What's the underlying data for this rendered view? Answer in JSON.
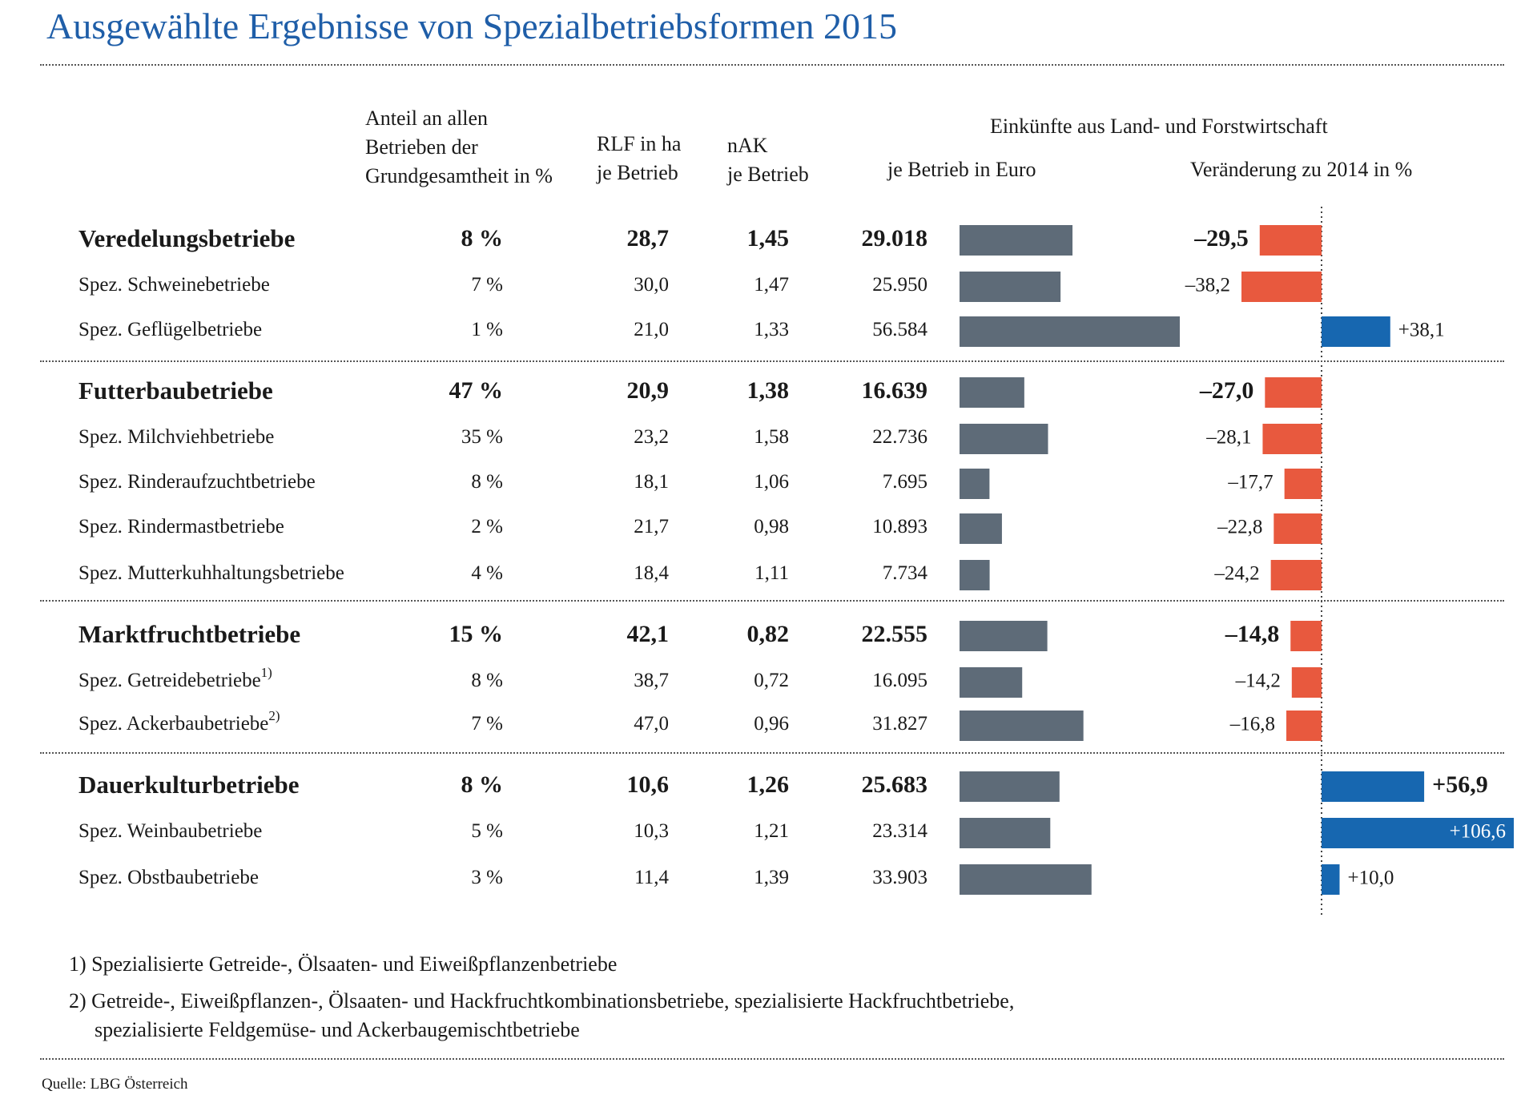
{
  "title": "Ausgewählte Ergebnisse von Spezialbetriebsformen 2015",
  "headers": {
    "anteil": [
      "Anteil an allen",
      "Betrieben der",
      "Grundgesamtheit in %"
    ],
    "rlf": [
      "RLF in ha",
      "je Betrieb"
    ],
    "nak": [
      "nAK",
      "je Betrieb"
    ],
    "einkuenfte": "Einkünfte aus Land- und Forstwirtschaft",
    "je_betrieb": "je Betrieb in Euro",
    "veraenderung": "Veränderung zu 2014 in %"
  },
  "colors": {
    "title": "#1f5ea8",
    "bar_income": "#5e6b78",
    "negative": "#e8593e",
    "positive": "#1767b0"
  },
  "rows": [
    {
      "name": "Veredelungsbetriebe",
      "sup": "",
      "bold": true,
      "anteil": "8 %",
      "rlf": "28,7",
      "nak": "1,45",
      "euro_label": "29.018",
      "change_label": "–29,5"
    },
    {
      "name": "Spez. Schweinebetriebe",
      "sup": "",
      "bold": false,
      "anteil": "7 %",
      "rlf": "30,0",
      "nak": "1,47",
      "euro_label": "25.950",
      "change_label": "–38,2"
    },
    {
      "name": "Spez. Geflügelbetriebe",
      "sup": "",
      "bold": false,
      "anteil": "1 %",
      "rlf": "21,0",
      "nak": "1,33",
      "euro_label": "56.584",
      "change_label": "+38,1"
    },
    {
      "name": "Futterbaubetriebe",
      "sup": "",
      "bold": true,
      "anteil": "47 %",
      "rlf": "20,9",
      "nak": "1,38",
      "euro_label": "16.639",
      "change_label": "–27,0"
    },
    {
      "name": "Spez. Milchviehbetriebe",
      "sup": "",
      "bold": false,
      "anteil": "35 %",
      "rlf": "23,2",
      "nak": "1,58",
      "euro_label": "22.736",
      "change_label": "–28,1"
    },
    {
      "name": "Spez. Rinderaufzuchtbetriebe",
      "sup": "",
      "bold": false,
      "anteil": "8 %",
      "rlf": "18,1",
      "nak": "1,06",
      "euro_label": "7.695",
      "change_label": "–17,7"
    },
    {
      "name": "Spez. Rindermastbetriebe",
      "sup": "",
      "bold": false,
      "anteil": "2 %",
      "rlf": "21,7",
      "nak": "0,98",
      "euro_label": "10.893",
      "change_label": "–22,8"
    },
    {
      "name": "Spez. Mutterkuhhaltungsbetriebe",
      "sup": "",
      "bold": false,
      "anteil": "4 %",
      "rlf": "18,4",
      "nak": "1,11",
      "euro_label": "7.734",
      "change_label": "–24,2"
    },
    {
      "name": "Marktfruchtbetriebe",
      "sup": "",
      "bold": true,
      "anteil": "15 %",
      "rlf": "42,1",
      "nak": "0,82",
      "euro_label": "22.555",
      "change_label": "–14,8"
    },
    {
      "name": "Spez. Getreidebetriebe",
      "sup": "1)",
      "bold": false,
      "anteil": "8 %",
      "rlf": "38,7",
      "nak": "0,72",
      "euro_label": "16.095",
      "change_label": "–14,2"
    },
    {
      "name": "Spez. Ackerbaubetriebe",
      "sup": "2)",
      "bold": false,
      "anteil": "7 %",
      "rlf": "47,0",
      "nak": "0,96",
      "euro_label": "31.827",
      "change_label": "–16,8"
    },
    {
      "name": "Dauerkulturbetriebe",
      "sup": "",
      "bold": true,
      "anteil": "8 %",
      "rlf": "10,6",
      "nak": "1,26",
      "euro_label": "25.683",
      "change_label": "+56,9"
    },
    {
      "name": "Spez. Weinbaubetriebe",
      "sup": "",
      "bold": false,
      "anteil": "5 %",
      "rlf": "10,3",
      "nak": "1,21",
      "euro_label": "23.314",
      "change_label": "+106,6"
    },
    {
      "name": "Spez. Obstbaubetriebe",
      "sup": "",
      "bold": false,
      "anteil": "3 %",
      "rlf": "11,4",
      "nak": "1,39",
      "euro_label": "33.903",
      "change_label": "+10,0"
    }
  ],
  "chart_data": [
    {
      "type": "bar",
      "title": "je Betrieb in Euro",
      "categories": [
        "Veredelungsbetriebe",
        "Spez. Schweinebetriebe",
        "Spez. Geflügelbetriebe",
        "Futterbaubetriebe",
        "Spez. Milchviehbetriebe",
        "Spez. Rinderaufzuchtbetriebe",
        "Spez. Rindermastbetriebe",
        "Spez. Mutterkuhhaltungsbetriebe",
        "Marktfruchtbetriebe",
        "Spez. Getreidebetriebe",
        "Spez. Ackerbaubetriebe",
        "Dauerkulturbetriebe",
        "Spez. Weinbaubetriebe",
        "Spez. Obstbaubetriebe"
      ],
      "values": [
        29018,
        25950,
        56584,
        16639,
        22736,
        7695,
        10893,
        7734,
        22555,
        16095,
        31827,
        25683,
        23314,
        33903
      ],
      "orientation": "horizontal",
      "grid": false
    },
    {
      "type": "bar",
      "title": "Veränderung zu 2014 in %",
      "categories": [
        "Veredelungsbetriebe",
        "Spez. Schweinebetriebe",
        "Spez. Geflügelbetriebe",
        "Futterbaubetriebe",
        "Spez. Milchviehbetriebe",
        "Spez. Rinderaufzuchtbetriebe",
        "Spez. Rindermastbetriebe",
        "Spez. Mutterkuhhaltungsbetriebe",
        "Marktfruchtbetriebe",
        "Spez. Getreidebetriebe",
        "Spez. Ackerbaubetriebe",
        "Dauerkulturbetriebe",
        "Spez. Weinbaubetriebe",
        "Spez. Obstbaubetriebe"
      ],
      "values": [
        -29.5,
        -38.2,
        38.1,
        -27.0,
        -28.1,
        -17.7,
        -22.8,
        -24.2,
        -14.8,
        -14.2,
        -16.8,
        56.9,
        106.6,
        10.0
      ],
      "orientation": "horizontal",
      "grid": false
    }
  ],
  "footnotes": [
    {
      "num": "1)",
      "lines": [
        "Spezialisierte Getreide-, Ölsaaten- und Eiweißpflanzenbetriebe"
      ]
    },
    {
      "num": "2)",
      "lines": [
        "Getreide-, Eiweißpflanzen-, Ölsaaten- und Hackfruchtkombinationsbetriebe, spezialisierte Hackfruchtbetriebe,",
        "spezialisierte Feldgemüse- und Ackerbaugemischtbetriebe"
      ]
    }
  ],
  "source": "Quelle: LBG Österreich"
}
